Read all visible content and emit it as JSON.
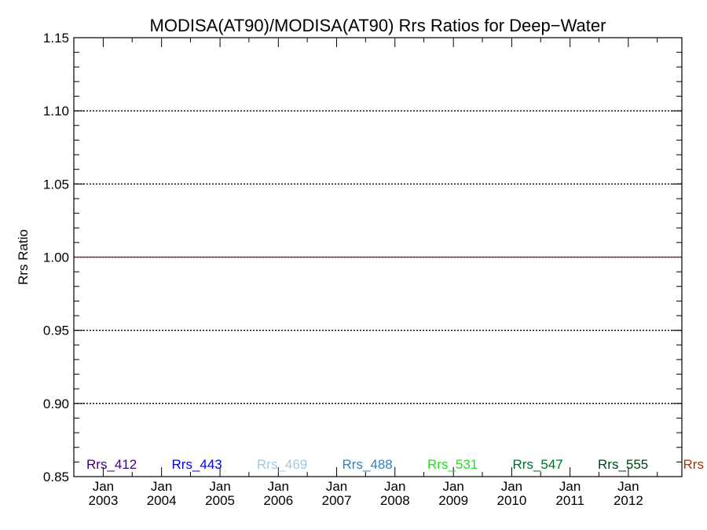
{
  "chart_data": {
    "type": "line",
    "title": "MODISA(AT90)/MODISA(AT90)  Rrs Ratios for Deep−Water",
    "ylabel": "Rrs Ratio",
    "xlabel": "",
    "ylim": [
      0.85,
      1.15
    ],
    "xlim": [
      "2002-07-01",
      "2012-12-01"
    ],
    "y_ticks": [
      "0.85",
      "0.90",
      "0.95",
      "1.00",
      "1.05",
      "1.10",
      "1.15"
    ],
    "x_ticks": [
      {
        "month": "Jan",
        "year": "2003",
        "date": "2003-01-01"
      },
      {
        "month": "Jan",
        "year": "2004",
        "date": "2004-01-01"
      },
      {
        "month": "Jan",
        "year": "2005",
        "date": "2005-01-01"
      },
      {
        "month": "Jan",
        "year": "2006",
        "date": "2006-01-01"
      },
      {
        "month": "Jan",
        "year": "2007",
        "date": "2007-01-01"
      },
      {
        "month": "Jan",
        "year": "2008",
        "date": "2008-01-01"
      },
      {
        "month": "Jan",
        "year": "2009",
        "date": "2009-01-01"
      },
      {
        "month": "Jan",
        "year": "2010",
        "date": "2010-01-01"
      },
      {
        "month": "Jan",
        "year": "2011",
        "date": "2011-01-01"
      },
      {
        "month": "Jan",
        "year": "2012",
        "date": "2012-01-01"
      }
    ],
    "grid": "dotted horizontal lines at major y ticks",
    "reference_line": {
      "y": 1.0,
      "color": "#cc0000"
    },
    "series": [
      {
        "name": "Rrs_412",
        "color": "#3f007d",
        "values": []
      },
      {
        "name": "Rrs_443",
        "color": "#0000ee",
        "values": []
      },
      {
        "name": "Rrs_469",
        "color": "#9ecae1",
        "values": []
      },
      {
        "name": "Rrs_488",
        "color": "#3182bd",
        "values": []
      },
      {
        "name": "Rrs_531",
        "color": "#22dd22",
        "values": []
      },
      {
        "name": "Rrs_547",
        "color": "#006d2c",
        "values": []
      },
      {
        "name": "Rrs_555",
        "color": "#00441b",
        "values": []
      },
      {
        "name": "Rrs",
        "color": "#a63603",
        "values": []
      }
    ],
    "legend": "bottom, horizontal row inside plot"
  }
}
